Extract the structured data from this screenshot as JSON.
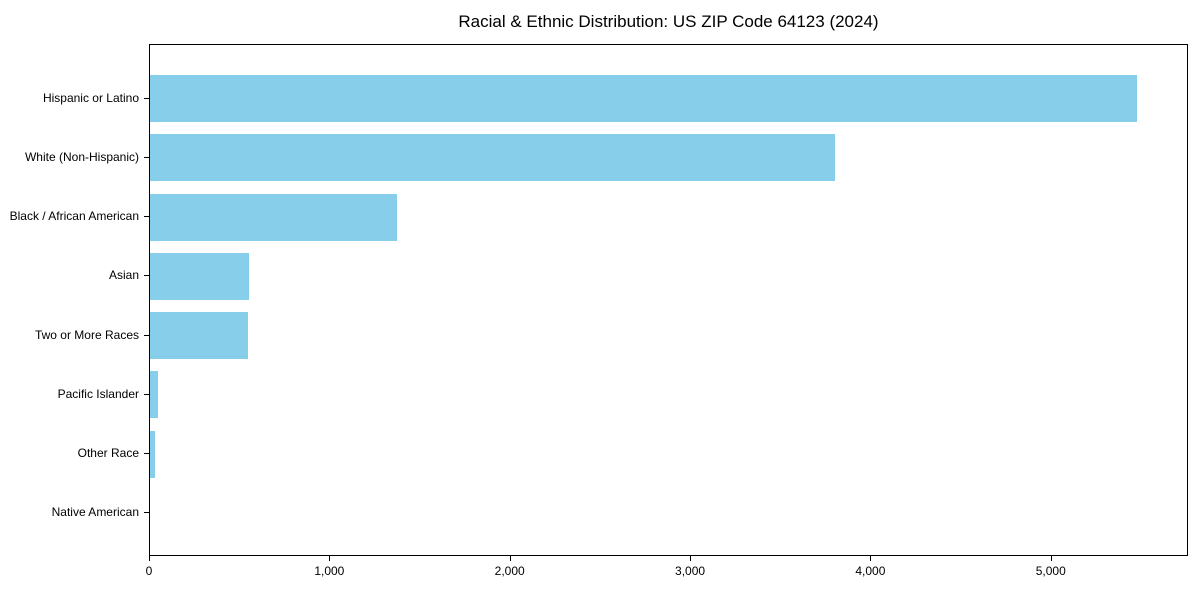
{
  "chart_data": {
    "type": "bar",
    "orientation": "horizontal",
    "title": "Racial & Ethnic Distribution: US ZIP Code 64123 (2024)",
    "categories": [
      "Hispanic or Latino",
      "White (Non-Hispanic)",
      "Black / African American",
      "Asian",
      "Two or More Races",
      "Pacific Islander",
      "Other Race",
      "Native American"
    ],
    "values": [
      5475,
      3800,
      1370,
      550,
      545,
      45,
      30,
      0
    ],
    "xlabel": "",
    "ylabel": "",
    "xlim": [
      0,
      5750
    ],
    "x_ticks": [
      0,
      1000,
      2000,
      3000,
      4000,
      5000
    ],
    "x_tick_labels": [
      "0",
      "1,000",
      "2,000",
      "3,000",
      "4,000",
      "5,000"
    ],
    "bar_color": "#87CEEB",
    "text_color": "#000000",
    "grid": false,
    "legend": null
  }
}
